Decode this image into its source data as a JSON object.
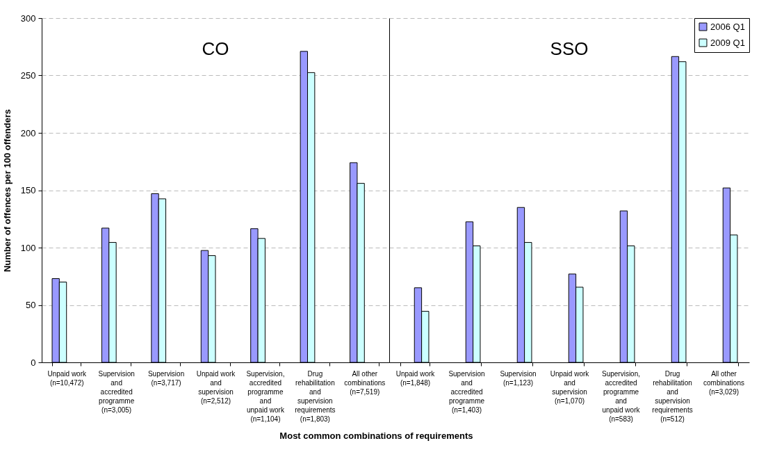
{
  "chart_data": [
    {
      "type": "bar",
      "title": "CO",
      "xlabel": "Most common combinations of requirements",
      "ylabel": "Number of offences per 100 offenders",
      "categories": [
        "Unpaid work\n(n=10,472)",
        "Supervision\nand\naccredited\nprogramme\n(n=3,005)",
        "Supervision\n(n=3,717)",
        "Unpaid work\nand\nsupervision\n(n=2,512)",
        "Supervision,\naccredited\nprogramme\nand\nunpaid work\n(n=1,104)",
        "Drug\nrehabilitation\nand\nsupervision\nrequirements\n(n=1,803)",
        "All other\ncombinations\n(n=7,519)"
      ],
      "series": [
        {
          "color": "#9999ff",
          "values": [
            73,
            117,
            147,
            97.5,
            116.5,
            271,
            174
          ]
        },
        {
          "color": "#ccffff",
          "values": [
            70,
            104.5,
            142.5,
            93,
            108,
            252.5,
            156
          ]
        }
      ],
      "ylim": [
        0,
        300
      ],
      "yticks": [
        0,
        50,
        100,
        150,
        200,
        250,
        300
      ],
      "grid": "y"
    },
    {
      "type": "bar",
      "title": "SSO",
      "categories": [
        "Unpaid work\n(n=1,848)",
        "Supervision\nand\naccredited\nprogramme\n(n=1,403)",
        "Supervision\n(n=1,123)",
        "Unpaid work\nand\nsupervision\n(n=1,070)",
        "Supervision,\naccredited\nprogramme\nand\nunpaid work\n(n=583)",
        "Drug\nrehabilitation\nand\nsupervision\nrequirements\n(n=512)",
        "All other\ncombinations\n(n=3,029)"
      ],
      "series": [
        {
          "name": "2006 Q1",
          "color": "#9999ff",
          "values": [
            65,
            122.5,
            135,
            77,
            132,
            266.5,
            152
          ]
        },
        {
          "name": "2009 Q1",
          "color": "#ccffff",
          "values": [
            44.5,
            101.5,
            104.5,
            65.5,
            101.5,
            262,
            111
          ]
        }
      ],
      "ylim": [
        0,
        300
      ],
      "yticks": [
        0,
        50,
        100,
        150,
        200,
        250,
        300
      ],
      "grid": "y",
      "tick_labels": "x",
      "legend": "top right"
    }
  ]
}
